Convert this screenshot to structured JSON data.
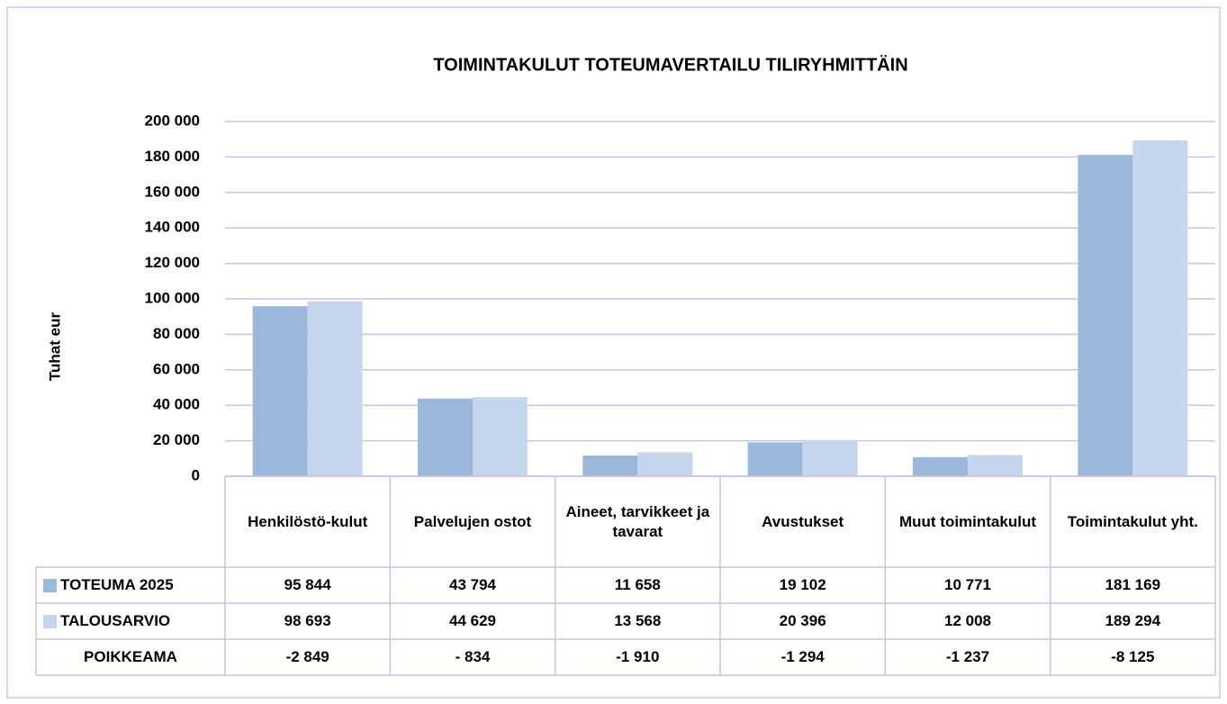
{
  "chart_data": {
    "type": "bar",
    "title": "TOIMINTAKULUT TOTEUMAVERTAILU TILIRYHMITTÄIN",
    "y_label": "Tuhat eur",
    "categories": [
      "Henkilöstö-kulut",
      "Palvelujen ostot",
      "Aineet, tarvikkeet ja tavarat",
      "Avustukset",
      "Muut toimintakulut",
      "Toimintakulut yht."
    ],
    "series": [
      {
        "name": "TOTEUMA 2025",
        "color": "#9bb7dc",
        "values": [
          95844,
          43794,
          11658,
          19102,
          10771,
          181169
        ],
        "value_labels": [
          "95 844",
          "43 794",
          "11 658",
          "19 102",
          "10 771",
          "181 169"
        ]
      },
      {
        "name": "TALOUSARVIO",
        "color": "#c6d6ec",
        "values": [
          98693,
          44629,
          13568,
          20396,
          12008,
          189294
        ],
        "value_labels": [
          "98 693",
          "44 629",
          "13 568",
          "20 396",
          "12 008",
          "189 294"
        ]
      }
    ],
    "deviation": {
      "name": "POIKKEAMA",
      "values": [
        -2849,
        -834,
        -1910,
        -1294,
        -1237,
        -8125
      ],
      "value_labels": [
        "-2 849",
        "- 834",
        "-1 910",
        "-1 294",
        "-1 237",
        "-8 125"
      ]
    },
    "ylim": [
      0,
      200000
    ],
    "yticks": [
      0,
      {
        "value": 20000,
        "label": "20 000"
      },
      {
        "value": 40000,
        "label": "40 000"
      },
      {
        "value": 60000,
        "label": "60 000"
      },
      {
        "value": 80000,
        "label": "80 000"
      },
      {
        "value": 100000,
        "label": "100 000"
      },
      {
        "value": 120000,
        "label": "120 000"
      },
      {
        "value": 140000,
        "label": "140 000"
      },
      {
        "value": 160000,
        "label": "160 000"
      },
      {
        "value": 180000,
        "label": "180 000"
      },
      {
        "value": 200000,
        "label": "200 000"
      }
    ],
    "grid": true,
    "data_table": true
  }
}
